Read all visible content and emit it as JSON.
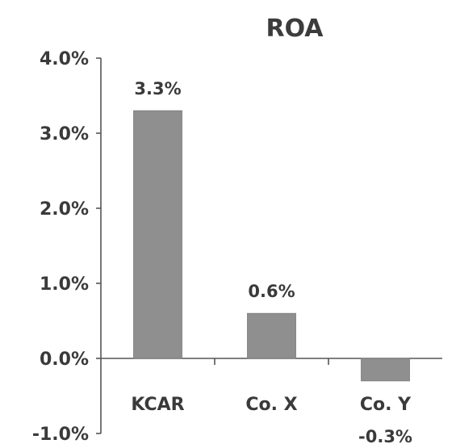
{
  "chart_data": {
    "type": "bar",
    "title": "ROA",
    "categories": [
      "KCAR",
      "Co. X",
      "Co. Y"
    ],
    "values": [
      3.3,
      0.6,
      -0.3
    ],
    "value_labels": [
      "3.3%",
      "0.6%",
      "-0.3%"
    ],
    "ylim": [
      -1.0,
      4.0
    ],
    "yticks": [
      4.0,
      3.0,
      2.0,
      1.0,
      0.0,
      -1.0
    ],
    "ytick_labels": [
      "4.0%",
      "3.0%",
      "2.0%",
      "1.0%",
      "0.0%",
      "-1.0%"
    ],
    "xlabel": "",
    "ylabel": "",
    "grid": false,
    "legend": "none",
    "bar_color": "#8f8f8f"
  }
}
